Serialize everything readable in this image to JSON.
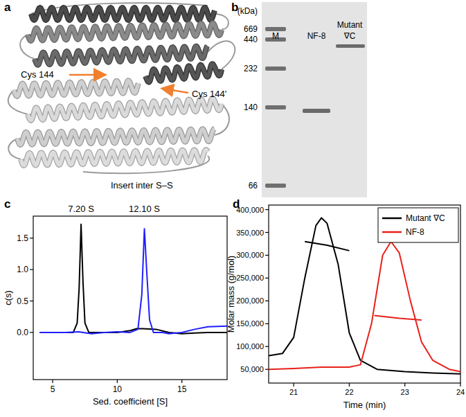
{
  "panel_labels": [
    "a",
    "b",
    "c",
    "d"
  ],
  "panel_a": {
    "annotations": [
      "Cys 144",
      "Cys 144'",
      "Insert inter S–S"
    ]
  },
  "panel_b": {
    "unit": "(kDa)",
    "marker_sizes": [
      669,
      440,
      232,
      140,
      66
    ],
    "lanes": [
      [
        "M"
      ],
      [
        "NF-8"
      ],
      [
        "Mutant",
        "∇C"
      ]
    ]
  },
  "chart_data": [
    {
      "type": "line",
      "x_label": "Sed. coefficient [S]",
      "y_label": "c(s)",
      "annotations": [
        {
          "text": "7.20 S",
          "x": 7.2
        },
        {
          "text": "12.10 S",
          "x": 12.1
        }
      ],
      "xlim": [
        3.5,
        18.5
      ],
      "xticks": [
        5,
        10,
        15
      ],
      "ylim": [
        -0.75,
        1.85
      ],
      "yticks": [
        {
          "value": 0,
          "label": "0.0"
        },
        0.5,
        {
          "value": 1,
          "label": "1.0"
        },
        1.5
      ],
      "series": [
        {
          "color": "#000000",
          "x": [
            4,
            5,
            6,
            6.6,
            6.9,
            7.05,
            7.2,
            7.35,
            7.5,
            7.8,
            9,
            10,
            11,
            11.5,
            12,
            13,
            14,
            15,
            16,
            17,
            18.5
          ],
          "values": [
            0,
            0,
            0,
            0,
            0.15,
            0.7,
            1.72,
            0.8,
            0.15,
            0,
            0,
            0,
            0.03,
            0.06,
            0.06,
            0.05,
            0,
            -0.02,
            -0.01,
            0,
            0
          ]
        },
        {
          "color": "#1f1fff",
          "x": [
            4,
            5,
            6,
            7,
            8,
            9,
            10,
            11,
            11.6,
            11.9,
            12.1,
            12.3,
            12.5,
            12.8,
            13.5,
            14,
            15,
            16,
            17,
            18.5
          ],
          "values": [
            0,
            0,
            0,
            0.01,
            -0.02,
            0,
            0.01,
            0,
            0.05,
            0.6,
            1.65,
            0.9,
            0.2,
            0,
            0,
            -0.02,
            0,
            0.05,
            0.09,
            0.1
          ]
        }
      ]
    },
    {
      "type": "line",
      "x_label": "Time (min)",
      "y_label": "Molar mass (g/mol)",
      "legend": "upper right",
      "xlim": [
        20.55,
        24
      ],
      "xticks": [
        21,
        22,
        23,
        24
      ],
      "ylim": [
        20000,
        410000
      ],
      "yticks": [
        {
          "value": 50000,
          "label": "50,000"
        },
        {
          "value": 100000,
          "label": "100,000"
        },
        {
          "value": 150000,
          "label": "150,000"
        },
        {
          "value": 200000,
          "label": "200,000"
        },
        {
          "value": 250000,
          "label": "250,000"
        },
        {
          "value": 300000,
          "label": "300,000"
        },
        {
          "value": 350000,
          "label": "350,000"
        },
        {
          "value": 400000,
          "label": "400,000"
        }
      ],
      "series": [
        {
          "name": "Mutant ∇C",
          "color": "#000000",
          "x": [
            20.55,
            20.8,
            21.0,
            21.2,
            21.4,
            21.5,
            21.6,
            21.8,
            22.0,
            22.2,
            22.5,
            23.0,
            23.5,
            24.0
          ],
          "values": [
            80000,
            85000,
            120000,
            250000,
            365000,
            382000,
            370000,
            280000,
            130000,
            70000,
            50000,
            45000,
            42000,
            40000
          ]
        },
        {
          "name": "NF-8",
          "color": "#e8201a",
          "x": [
            20.55,
            21.0,
            21.5,
            22.0,
            22.2,
            22.4,
            22.6,
            22.75,
            22.9,
            23.1,
            23.3,
            23.5,
            23.8,
            24.0
          ],
          "values": [
            50000,
            52000,
            55000,
            55000,
            60000,
            150000,
            300000,
            330000,
            305000,
            200000,
            110000,
            70000,
            50000,
            45000
          ]
        },
        {
          "color": "#000000",
          "x": [
            21.2,
            21.6,
            22.0
          ],
          "values": [
            330000,
            322000,
            310000
          ]
        },
        {
          "color": "#e8201a",
          "x": [
            22.45,
            22.9,
            23.3
          ],
          "values": [
            168000,
            162000,
            158000
          ]
        }
      ]
    }
  ]
}
